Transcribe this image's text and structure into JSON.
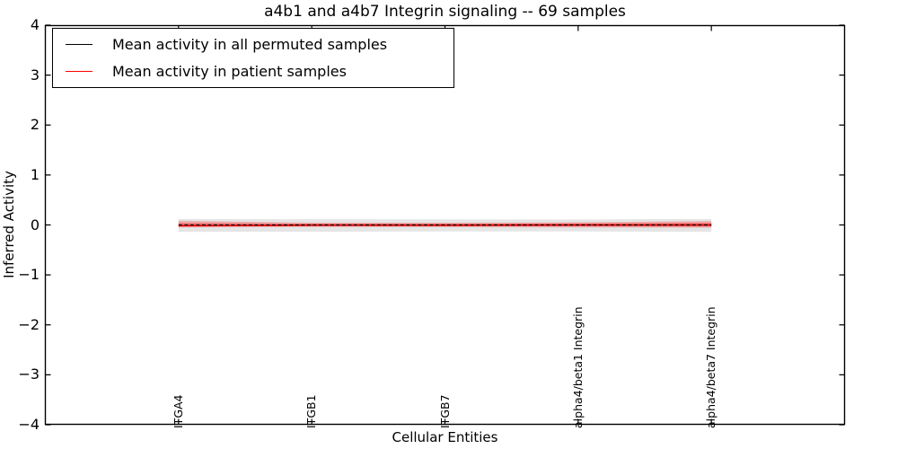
{
  "title": "a4b1 and a4b7 Integrin signaling -- 69 samples",
  "legend": {
    "entries": [
      {
        "label": "Mean activity in all permuted samples",
        "color": "#000000"
      },
      {
        "label": "Mean activity in patient samples",
        "color": "#ff0000"
      }
    ]
  },
  "chart_data": {
    "type": "line",
    "title": "a4b1 and a4b7 Integrin signaling -- 69 samples",
    "xlabel": "Cellular Entities",
    "ylabel": "Inferred Activity",
    "xlim": [
      0,
      6
    ],
    "ylim": [
      -4,
      4
    ],
    "grid": false,
    "legend_position": "upper left",
    "yticks": [
      {
        "value": 4,
        "label": "4"
      },
      {
        "value": 3,
        "label": "3"
      },
      {
        "value": 2,
        "label": "2"
      },
      {
        "value": 1,
        "label": "1"
      },
      {
        "value": 0,
        "label": "0"
      },
      {
        "value": -1,
        "label": "−1"
      },
      {
        "value": -2,
        "label": "−2"
      },
      {
        "value": -3,
        "label": "−3"
      },
      {
        "value": -4,
        "label": "−4"
      }
    ],
    "categories": [
      "ITGA4",
      "ITGB1",
      "ITGB7",
      "alpha4/beta1 Integrin",
      "alpha4/beta7 Integrin"
    ],
    "x": [
      1,
      2,
      3,
      4,
      5
    ],
    "series": [
      {
        "name": "Mean activity in all permuted samples",
        "id": "permuted-mean-line",
        "color": "#000000",
        "dash": "4 2.5",
        "width": 1.3,
        "values": [
          0.0,
          0.0,
          0.0,
          0.0,
          0.0
        ]
      },
      {
        "name": "Mean activity in patient samples",
        "id": "patient-mean-line",
        "color": "#ff0000",
        "dash": null,
        "width": 1.8,
        "values": [
          -0.015,
          -0.005,
          -0.005,
          0.0,
          0.0
        ]
      }
    ],
    "bands": [
      {
        "id": "permuted-std-band",
        "color": "rgba(0,0,0,0.10)",
        "upper": [
          0.12,
          0.115,
          0.11,
          0.11,
          0.12
        ],
        "lower": [
          -0.14,
          -0.135,
          -0.13,
          -0.13,
          -0.14
        ]
      },
      {
        "id": "patient-std-band-outer",
        "color": "rgba(255,0,0,0.22)",
        "upper": [
          0.085,
          0.045,
          0.045,
          0.055,
          0.08
        ],
        "lower": [
          -0.05,
          -0.04,
          -0.045,
          -0.05,
          -0.055
        ]
      },
      {
        "id": "patient-std-band-inner",
        "color": "rgba(255,0,0,0.30)",
        "upper": [
          0.045,
          0.025,
          0.025,
          0.03,
          0.045
        ],
        "lower": [
          -0.03,
          -0.02,
          -0.025,
          -0.03,
          -0.035
        ]
      }
    ]
  }
}
